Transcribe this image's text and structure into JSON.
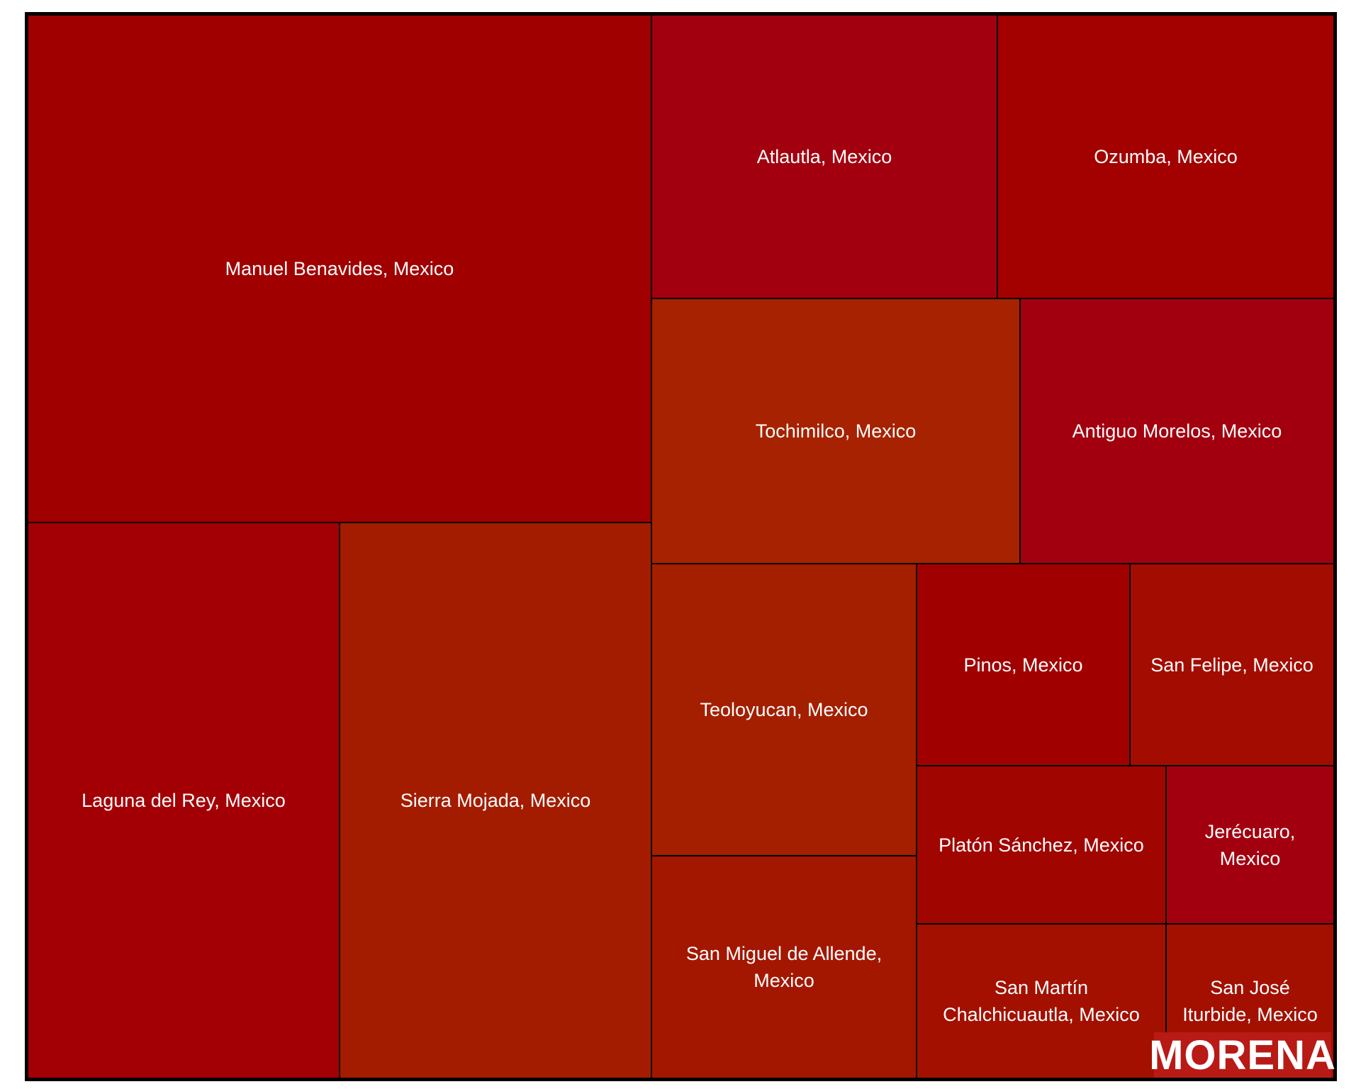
{
  "chart_data": {
    "type": "treemap",
    "title": "",
    "brand": "MORENA",
    "colors": {
      "dark_red": "#a10000",
      "crimson": "#a3000f",
      "orange_red": "#a31f00",
      "mid_red": "#a31000"
    },
    "tiles": [
      {
        "label": "Manuel Benavides, Mexico",
        "value": 24.5,
        "color": "#a10000"
      },
      {
        "label": "Laguna del Rey, Mexico",
        "value": 12.5,
        "color": "#a30005"
      },
      {
        "label": "Sierra Mojada, Mexico",
        "value": 12.5,
        "color": "#a31c00"
      },
      {
        "label": "Atlautla, Mexico",
        "value": 7.6,
        "color": "#a3000f"
      },
      {
        "label": "Ozumba, Mexico",
        "value": 7.6,
        "color": "#a30000"
      },
      {
        "label": "Tochimilco, Mexico",
        "value": 7.6,
        "color": "#a62200"
      },
      {
        "label": "Antiguo Morelos, Mexico",
        "value": 6.6,
        "color": "#a3000f"
      },
      {
        "label": "Teoloyucan, Mexico",
        "value": 6.0,
        "color": "#a31f00"
      },
      {
        "label": "San Miguel de Allende, Mexico",
        "value": 4.7,
        "color": "#a31700"
      },
      {
        "label": "Pinos, Mexico",
        "value": 3.4,
        "color": "#a10000"
      },
      {
        "label": "San Felipe, Mexico",
        "value": 3.4,
        "color": "#a30c00"
      },
      {
        "label": "Platón Sánchez, Mexico",
        "value": 3.1,
        "color": "#a10500"
      },
      {
        "label": "Jerécuaro, Mexico",
        "value": 2.2,
        "color": "#a3000f"
      },
      {
        "label": "San Martín Chalchicuautla, Mexico",
        "value": 3.1,
        "color": "#a31000"
      },
      {
        "label": "San José Iturbide, Mexico",
        "value": 2.2,
        "color": "#a31000"
      }
    ]
  }
}
